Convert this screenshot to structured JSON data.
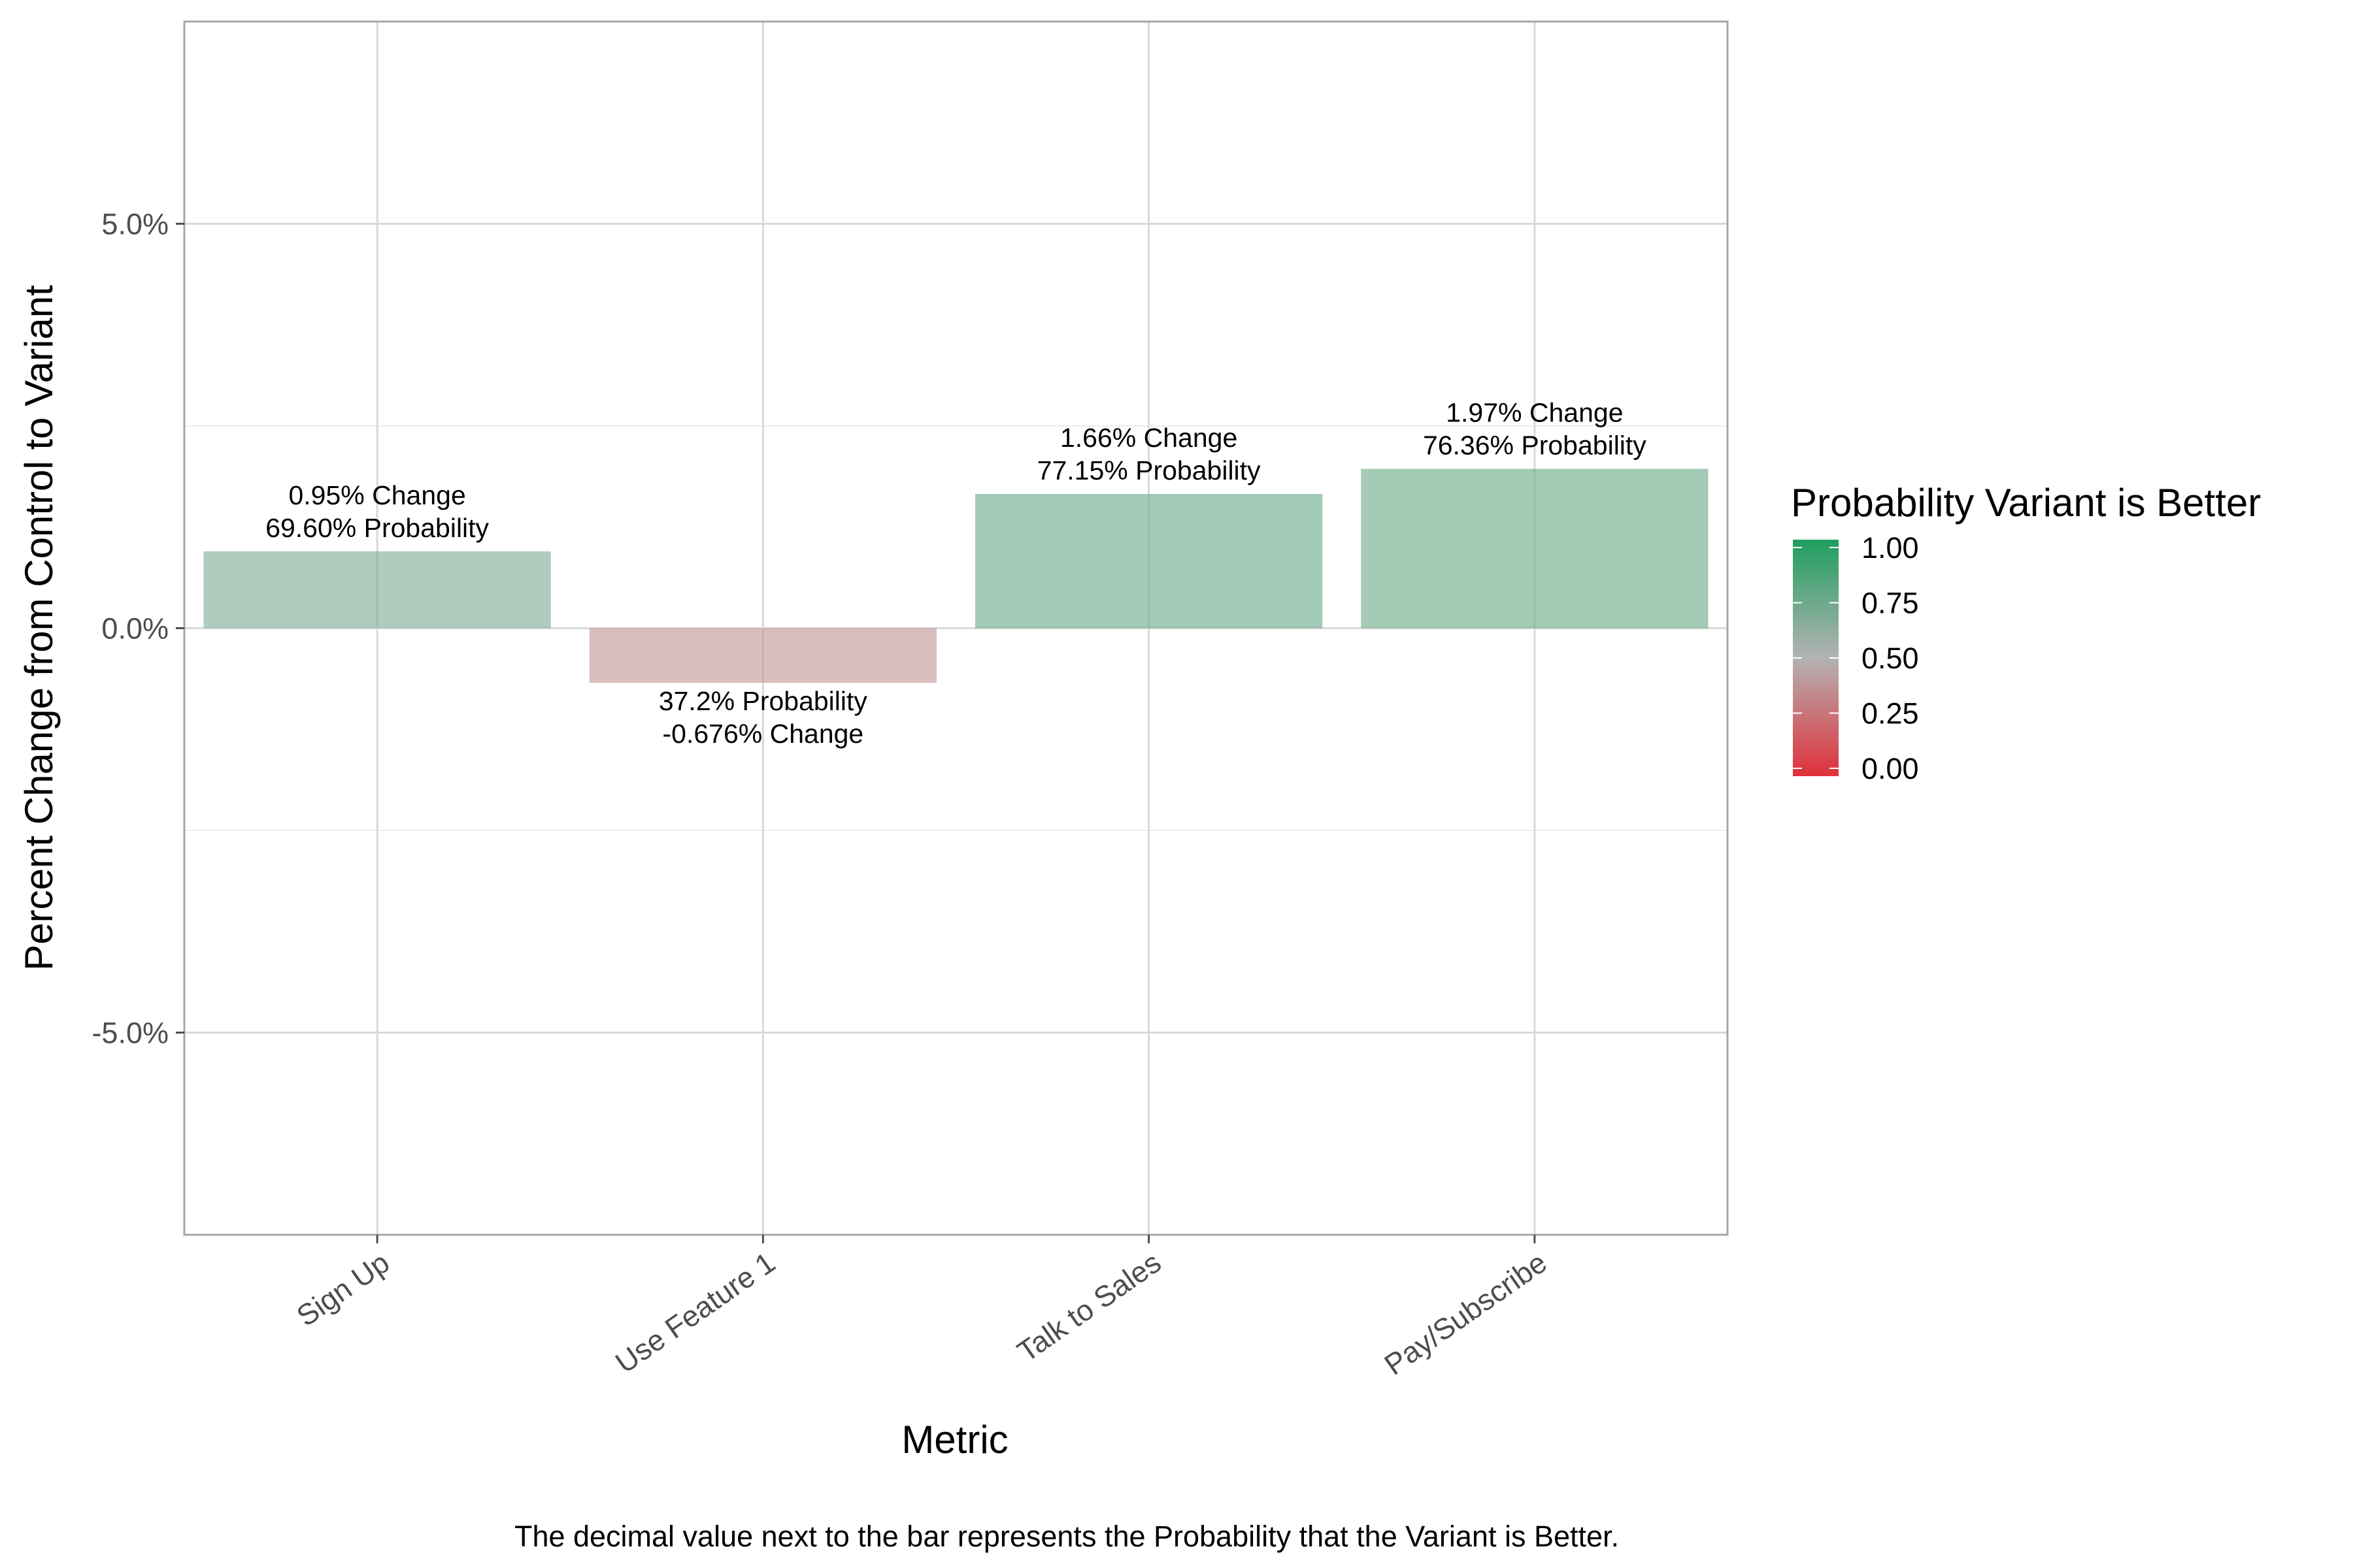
{
  "chart_data": {
    "type": "bar",
    "categories": [
      "Sign Up",
      "Use Feature 1",
      "Talk to Sales",
      "Pay/Subscribe"
    ],
    "values": [
      0.95,
      -0.676,
      1.66,
      1.97
    ],
    "probabilities": [
      0.696,
      0.372,
      0.7715,
      0.7636
    ],
    "bar_labels": [
      [
        "0.95% Change",
        "69.60% Probability"
      ],
      [
        "37.2% Probability",
        "-0.676% Change"
      ],
      [
        "1.66% Change",
        "77.15% Probability"
      ],
      [
        "1.97% Change",
        "76.36% Probability"
      ]
    ],
    "xlabel": "Metric",
    "ylabel": "Percent Change from Control to Variant",
    "ylim": [
      -7.5,
      7.5
    ],
    "y_ticks": [
      -5,
      0,
      5
    ],
    "y_tick_labels": [
      "-5.0%",
      "0.0%",
      "5.0%"
    ],
    "y_minor": [
      -7.5,
      -2.5,
      2.5,
      7.5
    ],
    "legend": {
      "title": "Probability Variant is Better",
      "ticks": [
        0,
        0.25,
        0.5,
        0.75,
        1
      ],
      "tick_labels": [
        "0.00",
        "0.25",
        "0.50",
        "0.75",
        "1.00"
      ],
      "colors": {
        "low": "#e0303a",
        "mid": "#b3b3b3",
        "high": "#1f9e5e"
      },
      "placement": "right"
    },
    "caption": "The decimal value next to the bar represents the Probability that the Variant is Better."
  }
}
